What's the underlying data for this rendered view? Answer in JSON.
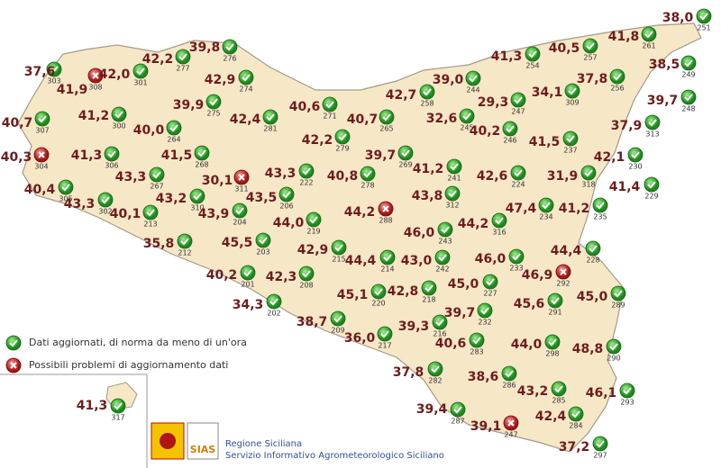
{
  "stations": [
    {
      "value": "37,6",
      "id": 303,
      "status": "ok"
    },
    {
      "value": "41,9",
      "id": 308,
      "status": "problem"
    },
    {
      "value": "42,0",
      "id": 301,
      "status": "ok"
    },
    {
      "value": "42,2",
      "id": 277,
      "status": "ok"
    },
    {
      "value": "39,8",
      "id": 276,
      "status": "ok"
    },
    {
      "value": "42,9",
      "id": 274,
      "status": "ok"
    },
    {
      "value": "39,9",
      "id": 275,
      "status": "ok"
    },
    {
      "value": "42,4",
      "id": 281,
      "status": "ok"
    },
    {
      "value": "40,7",
      "id": 307,
      "status": "ok"
    },
    {
      "value": "41,2",
      "id": 300,
      "status": "ok"
    },
    {
      "value": "40,0",
      "id": 264,
      "status": "ok"
    },
    {
      "value": "40,6",
      "id": 271,
      "status": "ok"
    },
    {
      "value": "40,7",
      "id": 265,
      "status": "ok"
    },
    {
      "value": "42,7",
      "id": 258,
      "status": "ok"
    },
    {
      "value": "39,0",
      "id": 244,
      "status": "ok"
    },
    {
      "value": "41,3",
      "id": 254,
      "status": "ok"
    },
    {
      "value": "40,5",
      "id": 257,
      "status": "ok"
    },
    {
      "value": "41,8",
      "id": 261,
      "status": "ok"
    },
    {
      "value": "38,0",
      "id": 251,
      "status": "ok"
    },
    {
      "value": "38,5",
      "id": 249,
      "status": "ok"
    },
    {
      "value": "37,8",
      "id": 256,
      "status": "ok"
    },
    {
      "value": "34,1",
      "id": 309,
      "status": "ok"
    },
    {
      "value": "29,3",
      "id": 247,
      "status": "ok"
    },
    {
      "value": "32,6",
      "id": 245,
      "status": "ok"
    },
    {
      "value": "40,2",
      "id": 246,
      "status": "ok"
    },
    {
      "value": "39,7",
      "id": 248,
      "status": "ok"
    },
    {
      "value": "37,9",
      "id": 313,
      "status": "ok"
    },
    {
      "value": "41,5",
      "id": 237,
      "status": "ok"
    },
    {
      "value": "40,3",
      "id": 304,
      "status": "problem"
    },
    {
      "value": "41,3",
      "id": 306,
      "status": "ok"
    },
    {
      "value": "41,5",
      "id": 268,
      "status": "ok"
    },
    {
      "value": "42,2",
      "id": 279,
      "status": "ok"
    },
    {
      "value": "39,7",
      "id": 269,
      "status": "ok"
    },
    {
      "value": "41,2",
      "id": 241,
      "status": "ok"
    },
    {
      "value": "42,6",
      "id": 224,
      "status": "ok"
    },
    {
      "value": "31,9",
      "id": 318,
      "status": "ok"
    },
    {
      "value": "42,1",
      "id": 230,
      "status": "ok"
    },
    {
      "value": "43,3",
      "id": 267,
      "status": "ok"
    },
    {
      "value": "30,1",
      "id": 311,
      "status": "problem"
    },
    {
      "value": "43,3",
      "id": 222,
      "status": "ok"
    },
    {
      "value": "40,8",
      "id": 278,
      "status": "ok"
    },
    {
      "value": "41,4",
      "id": 229,
      "status": "ok"
    },
    {
      "value": "40,4",
      "id": 305,
      "status": "ok"
    },
    {
      "value": "43,3",
      "id": 302,
      "status": "ok"
    },
    {
      "value": "43,2",
      "id": 310,
      "status": "ok"
    },
    {
      "value": "43,5",
      "id": 206,
      "status": "ok"
    },
    {
      "value": "43,9",
      "id": 204,
      "status": "ok"
    },
    {
      "value": "40,1",
      "id": 213,
      "status": "ok"
    },
    {
      "value": "43,8",
      "id": 312,
      "status": "ok"
    },
    {
      "value": "41,2",
      "id": 235,
      "status": "ok"
    },
    {
      "value": "47,4",
      "id": 234,
      "status": "ok"
    },
    {
      "value": "44,2",
      "id": 288,
      "status": "problem"
    },
    {
      "value": "44,0",
      "id": 219,
      "status": "ok"
    },
    {
      "value": "44,2",
      "id": 316,
      "status": "ok"
    },
    {
      "value": "46,0",
      "id": 243,
      "status": "ok"
    },
    {
      "value": "35,8",
      "id": 212,
      "status": "ok"
    },
    {
      "value": "45,5",
      "id": 203,
      "status": "ok"
    },
    {
      "value": "42,9",
      "id": 215,
      "status": "ok"
    },
    {
      "value": "44,4",
      "id": 228,
      "status": "ok"
    },
    {
      "value": "46,0",
      "id": 233,
      "status": "ok"
    },
    {
      "value": "43,0",
      "id": 242,
      "status": "ok"
    },
    {
      "value": "44,4",
      "id": 214,
      "status": "ok"
    },
    {
      "value": "40,2",
      "id": 201,
      "status": "ok"
    },
    {
      "value": "46,9",
      "id": 292,
      "status": "problem"
    },
    {
      "value": "45,0",
      "id": 227,
      "status": "ok"
    },
    {
      "value": "45,0",
      "id": 289,
      "status": "ok"
    },
    {
      "value": "42,3",
      "id": 208,
      "status": "ok"
    },
    {
      "value": "45,1",
      "id": 220,
      "status": "ok"
    },
    {
      "value": "42,8",
      "id": 218,
      "status": "ok"
    },
    {
      "value": "45,6",
      "id": 291,
      "status": "ok"
    },
    {
      "value": "34,3",
      "id": 202,
      "status": "ok"
    },
    {
      "value": "38,7",
      "id": 209,
      "status": "ok"
    },
    {
      "value": "39,3",
      "id": 216,
      "status": "ok"
    },
    {
      "value": "39,7",
      "id": 232,
      "status": "ok"
    },
    {
      "value": "36,0",
      "id": 217,
      "status": "ok"
    },
    {
      "value": "40,6",
      "id": 283,
      "status": "ok"
    },
    {
      "value": "44,0",
      "id": 298,
      "status": "ok"
    },
    {
      "value": "48,8",
      "id": 290,
      "status": "ok"
    },
    {
      "value": "37,8",
      "id": 282,
      "status": "ok"
    },
    {
      "value": "38,6",
      "id": 286,
      "status": "ok"
    },
    {
      "value": "43,2",
      "id": 285,
      "status": "ok"
    },
    {
      "value": "46,1",
      "id": 293,
      "status": "ok"
    },
    {
      "value": "39,4",
      "id": 287,
      "status": "ok"
    },
    {
      "value": "39,1",
      "id": 247,
      "status": "problem"
    },
    {
      "value": "42,4",
      "id": 284,
      "status": "ok"
    },
    {
      "value": "37,2",
      "id": 297,
      "status": "ok"
    },
    {
      "value": "41,3",
      "id": 317,
      "status": "ok"
    }
  ],
  "legend": [
    {
      "text": "Dati aggiornati, di norma da meno di un'ora",
      "status": "ok"
    },
    {
      "text": "Possibili problemi di aggiornamento dati",
      "status": "problem"
    }
  ],
  "footer": {
    "logo": "SIAS",
    "line1": "Regione Siciliana",
    "line2": "Servizio Informativo Agrometeorologico Siciliano"
  }
}
